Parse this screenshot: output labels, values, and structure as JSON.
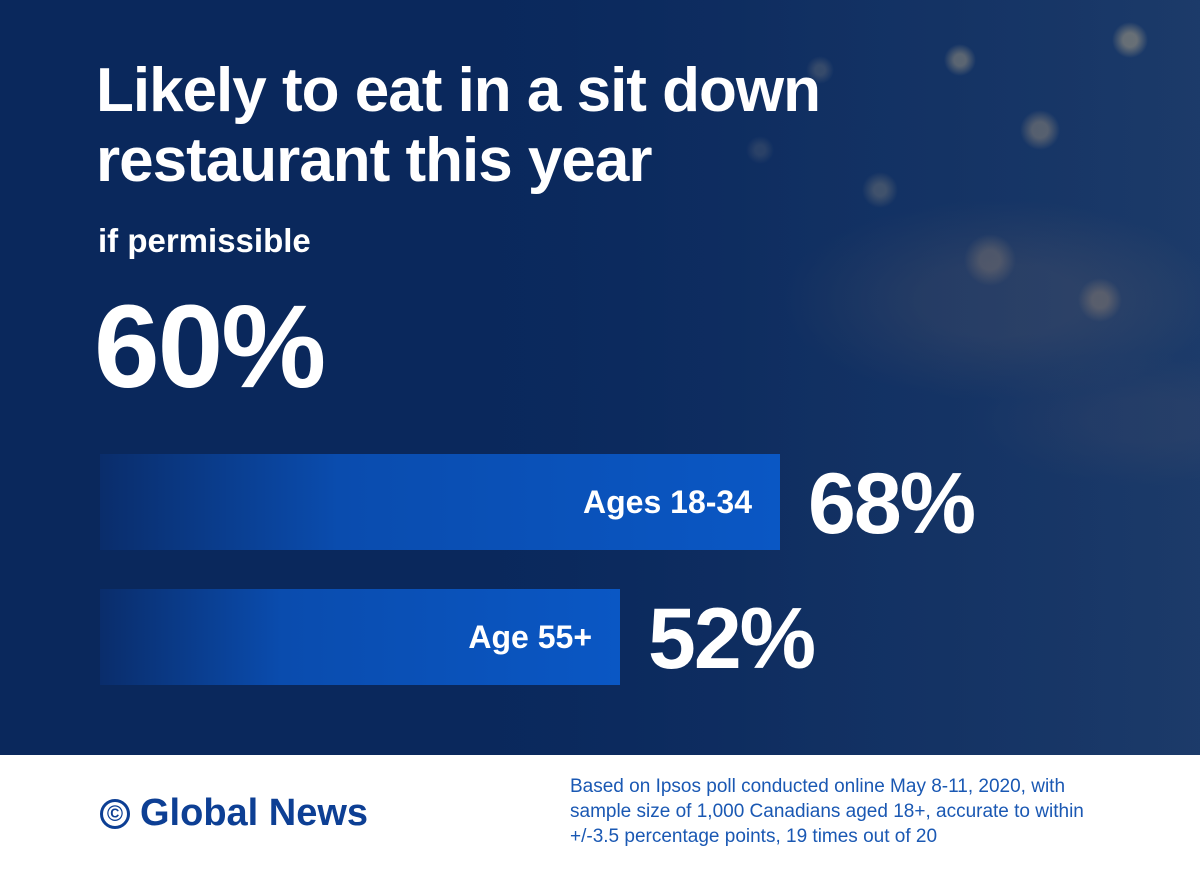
{
  "header": {
    "title": "Likely to eat in a sit down restaurant this year",
    "subtitle": "if permissible",
    "overall_value": "60%"
  },
  "chart_data": {
    "type": "bar",
    "orientation": "horizontal",
    "title": "Likely to eat in a sit down restaurant this year",
    "subtitle": "if permissible",
    "overall": 60,
    "categories": [
      "Ages 18-34",
      "Age 55+"
    ],
    "values": [
      68,
      52
    ],
    "value_labels": [
      "68%",
      "52%"
    ],
    "unit": "%",
    "xlim": [
      0,
      100
    ],
    "grid": false,
    "legend": "none",
    "colors": {
      "bar": "#0a55c0",
      "background": "#0c2a5c",
      "text": "#ffffff"
    }
  },
  "footer": {
    "logo_mark": "©",
    "logo_text": "Global News",
    "source": "Based on Ipsos poll conducted online May 8-11, 2020, with sample size of 1,000 Canadians aged 18+, accurate to within +/-3.5 percentage points, 19 times out of 20"
  },
  "colors": {
    "brand_blue": "#0d3f94",
    "source_blue": "#1a58b3"
  }
}
